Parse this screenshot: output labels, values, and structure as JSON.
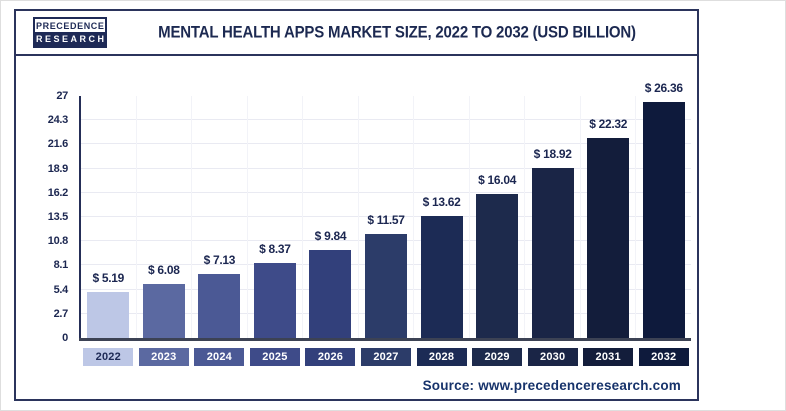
{
  "header": {
    "logo": {
      "line1": "PRECEDENCE",
      "line2": "RESEARCH"
    },
    "title": "MENTAL HEALTH APPS MARKET SIZE, 2022 TO 2032 (USD BILLION)"
  },
  "footer": {
    "source": "Source: www.precedenceresearch.com"
  },
  "colors": {
    "accent_navy": "#1c2951",
    "frame_border": "#2b345c",
    "axis_line": "#3c4254",
    "gridline": "#e9eaf2"
  },
  "chart_data": {
    "type": "bar",
    "title": "Mental Health Apps Market Size, 2022 to 2032 (USD Billion)",
    "xlabel": "",
    "ylabel": "",
    "categories": [
      "2022",
      "2023",
      "2024",
      "2025",
      "2026",
      "2027",
      "2028",
      "2029",
      "2030",
      "2031",
      "2032"
    ],
    "values": [
      5.19,
      6.08,
      7.13,
      8.37,
      9.84,
      11.57,
      13.62,
      16.04,
      18.92,
      22.32,
      26.36
    ],
    "value_labels": [
      "$ 5.19",
      "$ 6.08",
      "$ 7.13",
      "$ 8.37",
      "$ 9.84",
      "$ 11.57",
      "$ 13.62",
      "$ 16.04",
      "$ 18.92",
      "$ 22.32",
      "$ 26.36"
    ],
    "ylim": [
      0,
      27
    ],
    "yticks": [
      0,
      2.7,
      5.4,
      8.1,
      10.8,
      13.5,
      16.2,
      18.9,
      21.6,
      24.3,
      27
    ],
    "ytick_labels": [
      "0",
      "2.7",
      "5.4",
      "8.1",
      "10.8",
      "13.5",
      "16.2",
      "18.9",
      "21.6",
      "24.3",
      "27"
    ],
    "grid": true,
    "legend": "none",
    "bar_colors": [
      "#bdc7e6",
      "#5b69a1",
      "#4b5995",
      "#3e4b89",
      "#32407b",
      "#2c3c69",
      "#1c2b55",
      "#1d2a4c",
      "#1a2546",
      "#131d3b",
      "#0e1a3c"
    ],
    "badge_text_colors": [
      "#1e2a56",
      "#ffffff",
      "#ffffff",
      "#ffffff",
      "#ffffff",
      "#ffffff",
      "#ffffff",
      "#ffffff",
      "#ffffff",
      "#ffffff",
      "#ffffff"
    ]
  }
}
